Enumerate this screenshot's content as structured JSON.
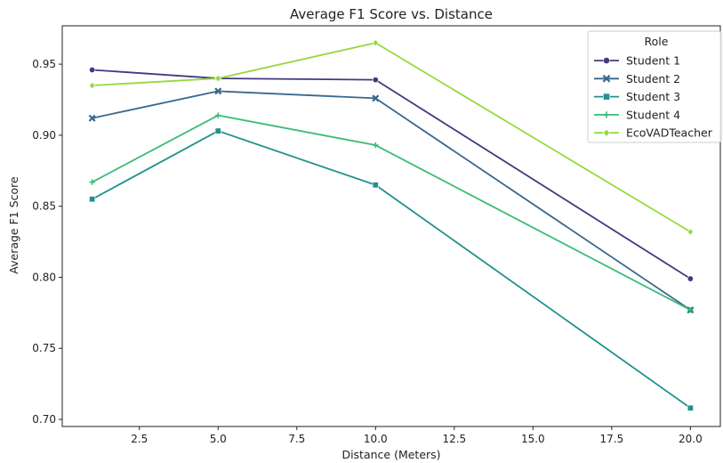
{
  "chart_data": {
    "type": "line",
    "title": "Average F1 Score vs. Distance",
    "xlabel": "Distance (Meters)",
    "ylabel": "Average F1 Score",
    "xlim": [
      0.05,
      20.95
    ],
    "ylim": [
      0.695,
      0.977
    ],
    "xticks": [
      "2.5",
      "5.0",
      "7.5",
      "10.0",
      "12.5",
      "15.0",
      "17.5",
      "20.0"
    ],
    "xtick_values": [
      2.5,
      5.0,
      7.5,
      10.0,
      12.5,
      15.0,
      17.5,
      20.0
    ],
    "yticks": [
      "0.70",
      "0.75",
      "0.80",
      "0.85",
      "0.90",
      "0.95"
    ],
    "ytick_values": [
      0.7,
      0.75,
      0.8,
      0.85,
      0.9,
      0.95
    ],
    "grid": false,
    "legend": {
      "title": "Role",
      "placement": "top-right"
    },
    "x": [
      1,
      5,
      10,
      20
    ],
    "series": [
      {
        "name": "Student 1",
        "values": [
          0.946,
          0.94,
          0.939,
          0.799
        ],
        "color": "#453781",
        "marker": "circle"
      },
      {
        "name": "Student 2",
        "values": [
          0.912,
          0.931,
          0.926,
          0.777
        ],
        "color": "#39688e",
        "marker": "x"
      },
      {
        "name": "Student 3",
        "values": [
          0.855,
          0.903,
          0.865,
          0.708
        ],
        "color": "#21918c",
        "marker": "square"
      },
      {
        "name": "Student 4",
        "values": [
          0.867,
          0.914,
          0.893,
          0.777
        ],
        "color": "#3bbb75",
        "marker": "plus"
      },
      {
        "name": "EcoVADTeacher",
        "values": [
          0.935,
          0.94,
          0.965,
          0.832
        ],
        "color": "#95d840",
        "marker": "diamond"
      }
    ]
  }
}
